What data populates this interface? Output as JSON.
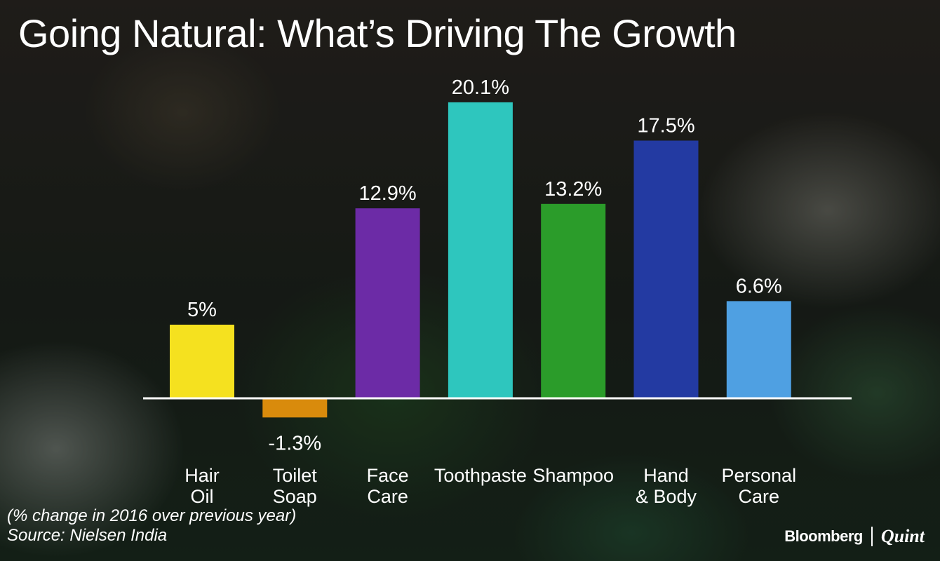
{
  "title": "Going Natural: What’s Driving The Growth",
  "chart_data": {
    "type": "bar",
    "categories": [
      [
        "Hair",
        "Oil"
      ],
      [
        "Toilet",
        "Soap"
      ],
      [
        "Face",
        "Care"
      ],
      [
        "Toothpaste"
      ],
      [
        "Shampoo"
      ],
      [
        "Hand",
        "& Body"
      ],
      [
        "Personal",
        "Care"
      ]
    ],
    "values": [
      5,
      -1.3,
      12.9,
      20.1,
      13.2,
      17.5,
      6.6
    ],
    "value_labels": [
      "5%",
      "-1.3%",
      "12.9%",
      "20.1%",
      "13.2%",
      "17.5%",
      "6.6%"
    ],
    "colors": [
      "#f5e11f",
      "#d98b0c",
      "#6c2ba6",
      "#2ec6be",
      "#2b9c2a",
      "#233aa2",
      "#4fa0e2"
    ],
    "ylim": [
      -1.3,
      20.1
    ],
    "grid": false,
    "legend": "none"
  },
  "footnote": "(% change in 2016 over previous year)",
  "source": "Source: Nielsen India",
  "brand": {
    "primary": "Bloomberg",
    "secondary": "Quint"
  },
  "colors": {
    "text": "#ffffff",
    "axis": "#ffffff"
  }
}
